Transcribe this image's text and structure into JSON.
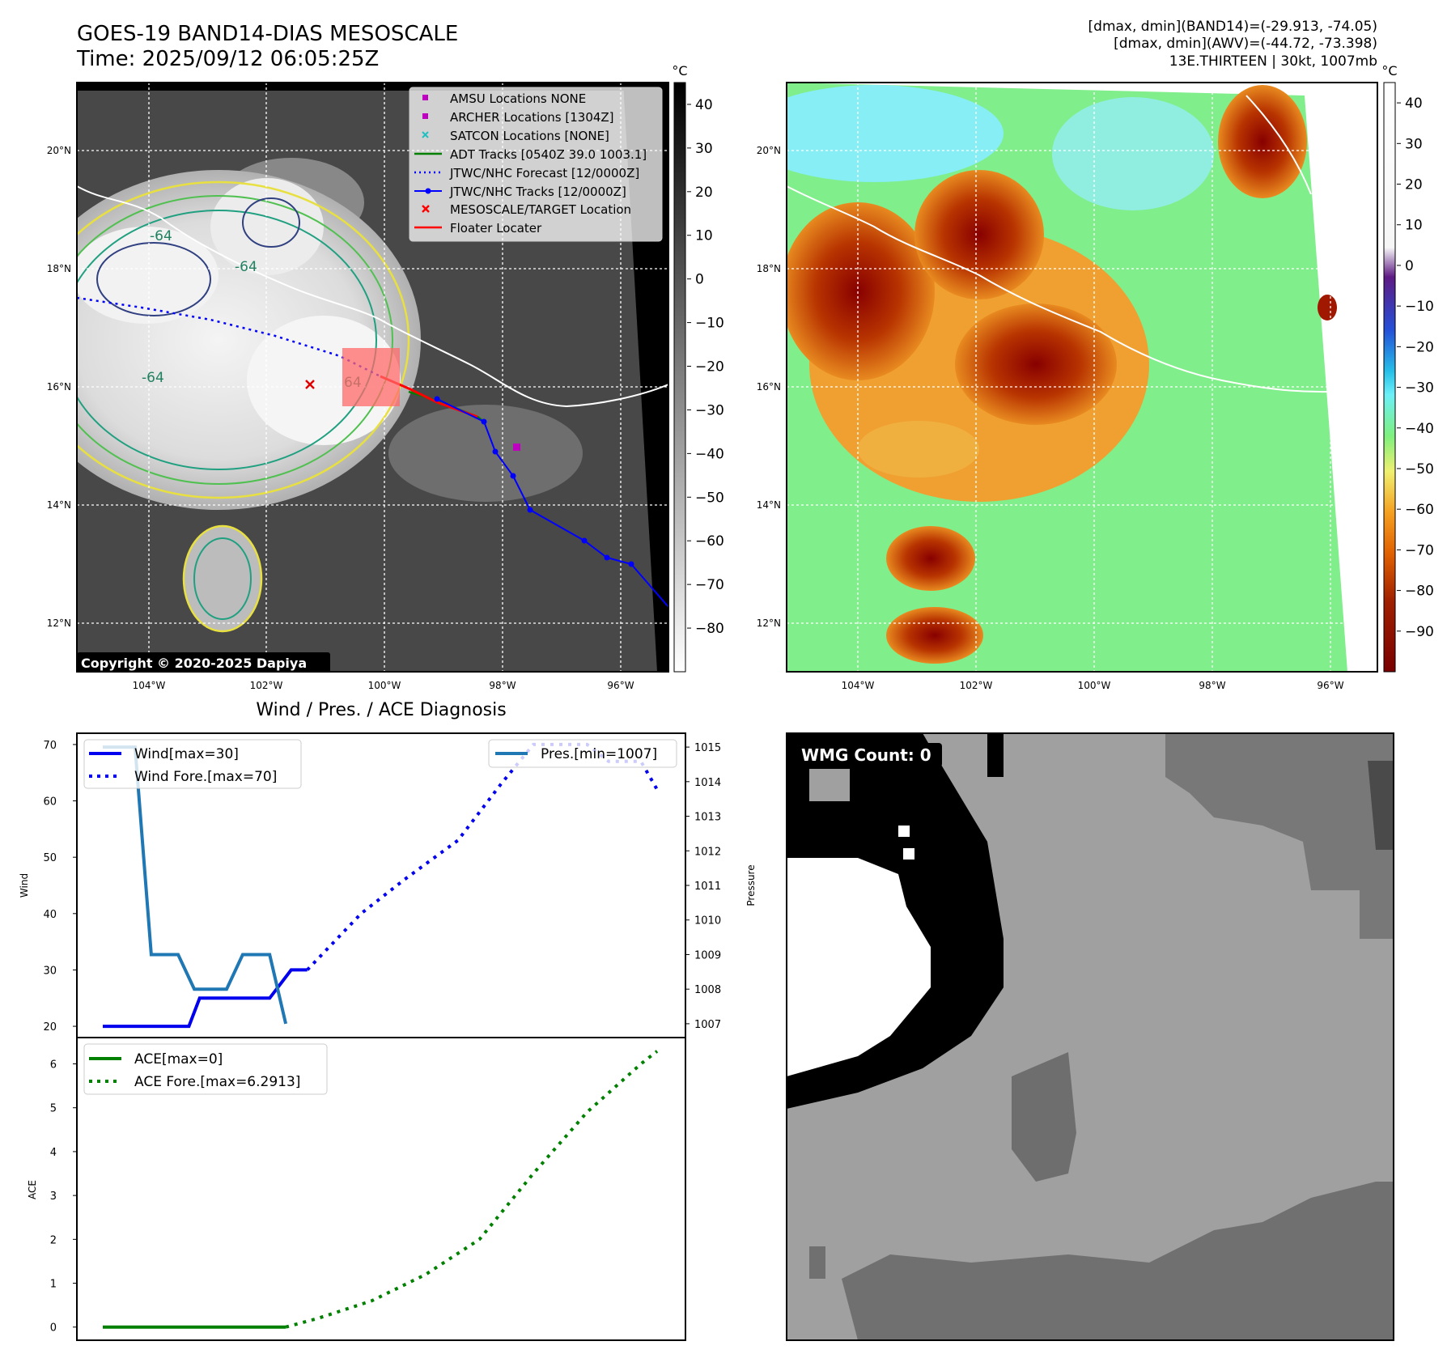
{
  "header": {
    "title": "GOES-19 BAND14-DIAS MESOSCALE",
    "time": "Time: 2025/09/12 06:05:25Z",
    "stats_band14": "[dmax, dmin](BAND14)=(-29.913, -74.05)",
    "stats_awv": "[dmax, dmin](AWV)=(-44.72, -73.398)",
    "storm_info": "13E.THIRTEEN | 30kt, 1007mb"
  },
  "map_common": {
    "lon_ticks": [
      "104°W",
      "102°W",
      "100°W",
      "98°W",
      "96°W"
    ],
    "lat_ticks": [
      "20°N",
      "18°N",
      "16°N",
      "14°N",
      "12°N"
    ],
    "colorbar_unit": "°C"
  },
  "ir_map": {
    "colorbar_ticks": [
      "40",
      "30",
      "20",
      "10",
      "0",
      "−10",
      "−20",
      "−30",
      "−40",
      "−50",
      "−60",
      "−70",
      "−80"
    ],
    "contour_labels": [
      "-64",
      "-64",
      "-64",
      "64"
    ],
    "copyright": "Copyright © 2020-2025 Dapiya",
    "legend": [
      {
        "label": "AMSU Locations NONE",
        "marker": "square",
        "color": "#c000c0"
      },
      {
        "label": "ARCHER Locations [1304Z]",
        "marker": "square",
        "color": "#c000c0"
      },
      {
        "label": "SATCON Locations [NONE]",
        "marker": "x",
        "color": "#20c0c0"
      },
      {
        "label": "ADT Tracks [0540Z 39.0 1003.1]",
        "marker": "line",
        "color": "#008000"
      },
      {
        "label": "JTWC/NHC Forecast [12/0000Z]",
        "marker": "dotted",
        "color": "#0000ff"
      },
      {
        "label": "JTWC/NHC Tracks [12/0000Z]",
        "marker": "line-dot",
        "color": "#0000ff"
      },
      {
        "label": "MESOSCALE/TARGET Location",
        "marker": "x",
        "color": "#ff0000"
      },
      {
        "label": "Floater Locater",
        "marker": "line",
        "color": "#ff0000"
      }
    ]
  },
  "awv_map": {
    "colorbar_ticks": [
      "40",
      "30",
      "20",
      "10",
      "0",
      "−10",
      "−20",
      "−30",
      "−40",
      "−50",
      "−60",
      "−70",
      "−80",
      "−90"
    ]
  },
  "wmg_panel": {
    "label": "WMG Count: 0"
  },
  "chart_data": [
    {
      "type": "line",
      "title": "Wind / Pres. / ACE Diagnosis",
      "ylabel": "Wind",
      "ylabel_right": "Pressure",
      "ylim": [
        18,
        72
      ],
      "ylim_right": [
        1006.6,
        1015.4
      ],
      "yticks": [
        20,
        30,
        40,
        50,
        60,
        70
      ],
      "yticks_right": [
        1007,
        1008,
        1009,
        1010,
        1011,
        1012,
        1013,
        1014,
        1015
      ],
      "legend_left": [
        "Wind[max=30]",
        "Wind Fore.[max=70]"
      ],
      "legend_right": [
        "Pres.[min=1007]"
      ],
      "series": [
        {
          "name": "Wind[max=30]",
          "color": "#0000ee",
          "style": "solid",
          "values": [
            [
              0,
              20
            ],
            [
              16,
              20
            ],
            [
              18,
              25
            ],
            [
              31,
              25
            ],
            [
              35,
              30
            ],
            [
              38,
              30
            ]
          ]
        },
        {
          "name": "Wind Fore.[max=70]",
          "color": "#0000ee",
          "style": "dotted",
          "values": [
            [
              38,
              30
            ],
            [
              48,
              40
            ],
            [
              56,
              46
            ],
            [
              66,
              53
            ],
            [
              74,
              63
            ],
            [
              80,
              70
            ],
            [
              90,
              70
            ],
            [
              94,
              67
            ],
            [
              100,
              67
            ],
            [
              103,
              62
            ]
          ]
        },
        {
          "name": "Pres.[min=1007]",
          "color": "#1f77b4",
          "style": "solid",
          "axis": "right",
          "values": [
            [
              0,
              1015
            ],
            [
              6,
              1015
            ],
            [
              9,
              1009
            ],
            [
              14,
              1009
            ],
            [
              17,
              1008
            ],
            [
              23,
              1008
            ],
            [
              26,
              1009
            ],
            [
              31,
              1009
            ],
            [
              34,
              1007
            ]
          ]
        }
      ]
    },
    {
      "type": "line",
      "ylabel": "ACE",
      "ylim": [
        -0.3,
        6.6
      ],
      "yticks": [
        0,
        1,
        2,
        3,
        4,
        5,
        6
      ],
      "legend": [
        "ACE[max=0]",
        "ACE Fore.[max=6.2913]"
      ],
      "series": [
        {
          "name": "ACE[max=0]",
          "color": "#008000",
          "style": "solid",
          "values": [
            [
              0,
              0
            ],
            [
              34,
              0
            ]
          ]
        },
        {
          "name": "ACE Fore.[max=6.2913]",
          "color": "#008000",
          "style": "dotted",
          "values": [
            [
              34,
              0
            ],
            [
              40,
              0.2
            ],
            [
              50,
              0.6
            ],
            [
              60,
              1.2
            ],
            [
              70,
              2.0
            ],
            [
              80,
              3.5
            ],
            [
              90,
              4.9
            ],
            [
              100,
              6.0
            ],
            [
              103,
              6.29
            ]
          ]
        }
      ]
    }
  ]
}
